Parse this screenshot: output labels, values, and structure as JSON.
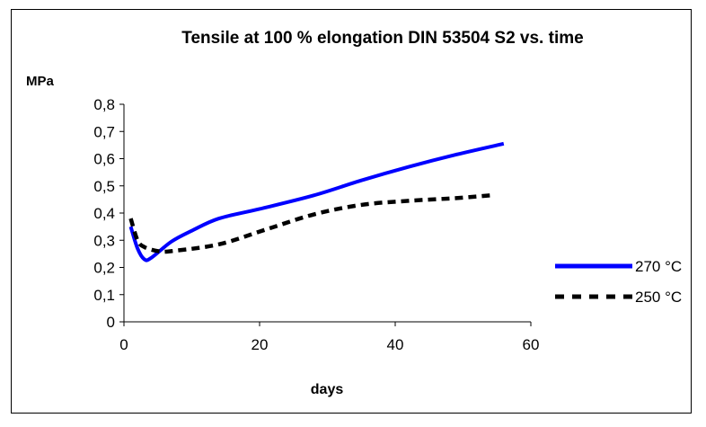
{
  "chart_data": {
    "type": "line",
    "title": "Tensile at 100 % elongation DIN 53504 S2 vs. time",
    "ylabel": "MPa",
    "xlabel": "days",
    "xlim": [
      0,
      60
    ],
    "ylim": [
      0,
      0.8
    ],
    "x_ticks": [
      0,
      20,
      40,
      60
    ],
    "x_tick_labels": [
      "0",
      "20",
      "40",
      "60"
    ],
    "y_ticks": [
      0,
      0.1,
      0.2,
      0.3,
      0.4,
      0.5,
      0.6,
      0.7,
      0.8
    ],
    "y_tick_labels": [
      "0",
      "0,1",
      "0,2",
      "0,3",
      "0,4",
      "0,5",
      "0,6",
      "0,7",
      "0,8"
    ],
    "grid": false,
    "legend_position": "right",
    "series": [
      {
        "name": "270 °C",
        "color": "#0000ff",
        "style": "solid",
        "points": [
          [
            1,
            0.35
          ],
          [
            2,
            0.27
          ],
          [
            3,
            0.23
          ],
          [
            4,
            0.235
          ],
          [
            7,
            0.295
          ],
          [
            10,
            0.335
          ],
          [
            14,
            0.38
          ],
          [
            20,
            0.415
          ],
          [
            28,
            0.465
          ],
          [
            35,
            0.52
          ],
          [
            42,
            0.57
          ],
          [
            49,
            0.615
          ],
          [
            56,
            0.655
          ]
        ]
      },
      {
        "name": "250 °C",
        "color": "#000000",
        "style": "dashed",
        "points": [
          [
            1,
            0.38
          ],
          [
            2,
            0.3
          ],
          [
            3,
            0.275
          ],
          [
            5,
            0.26
          ],
          [
            7,
            0.26
          ],
          [
            14,
            0.285
          ],
          [
            21,
            0.34
          ],
          [
            28,
            0.395
          ],
          [
            35,
            0.43
          ],
          [
            42,
            0.445
          ],
          [
            49,
            0.455
          ],
          [
            54,
            0.465
          ]
        ]
      }
    ]
  }
}
